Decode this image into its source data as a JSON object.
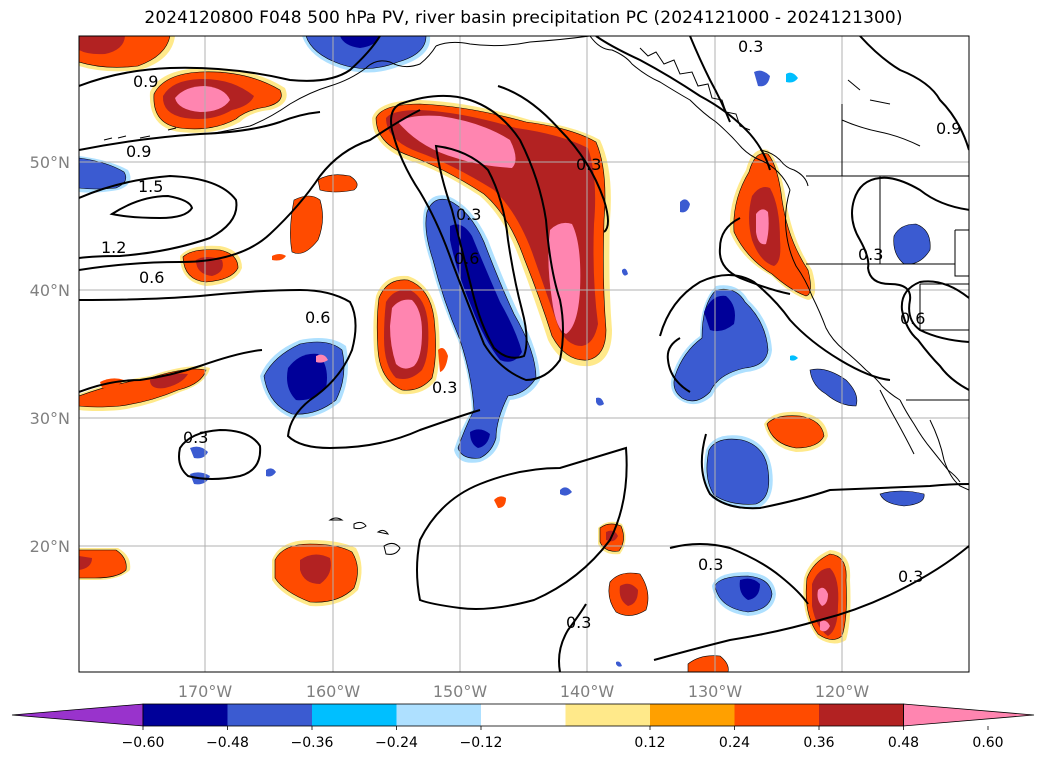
{
  "title": "2024120800 F048 500 hPa PV, river basin precipitation PC (2024121000 - 2024121300)",
  "map": {
    "lat_labels": [
      "50°N",
      "40°N",
      "30°N",
      "20°N"
    ],
    "lon_labels": [
      "170°W",
      "160°W",
      "150°W",
      "140°W",
      "130°W",
      "120°W"
    ],
    "contour_labels": [
      "0.9",
      "0.9",
      "1.5",
      "1.2",
      "0.6",
      "0.3",
      "0.6",
      "0.3",
      "0.3",
      "0.6",
      "0.3",
      "0.3",
      "0.9",
      "0.3",
      "0.6",
      "0.3",
      "0.3",
      "0.3"
    ],
    "grid": true
  },
  "colorbar": {
    "ticks": [
      "−0.60",
      "−0.48",
      "−0.36",
      "−0.24",
      "−0.12",
      "0.12",
      "0.24",
      "0.36",
      "0.48",
      "0.60"
    ],
    "colors": [
      "#9933cc",
      "#000099",
      "#3b5bd1",
      "#00bfff",
      "#aee0ff",
      "#ffffff",
      "#ffe98a",
      "#ffa000",
      "#ff4b00",
      "#b22222",
      "#ff85b0"
    ]
  },
  "palette": {
    "pink": "#ff85b0",
    "darkred": "#b22222",
    "orange": "#ff4b00",
    "amber": "#ffa000",
    "yellow": "#ffe98a",
    "navy": "#000099",
    "blue": "#3b5bd1",
    "cyan": "#00bfff",
    "lightblue": "#aee0ff"
  }
}
